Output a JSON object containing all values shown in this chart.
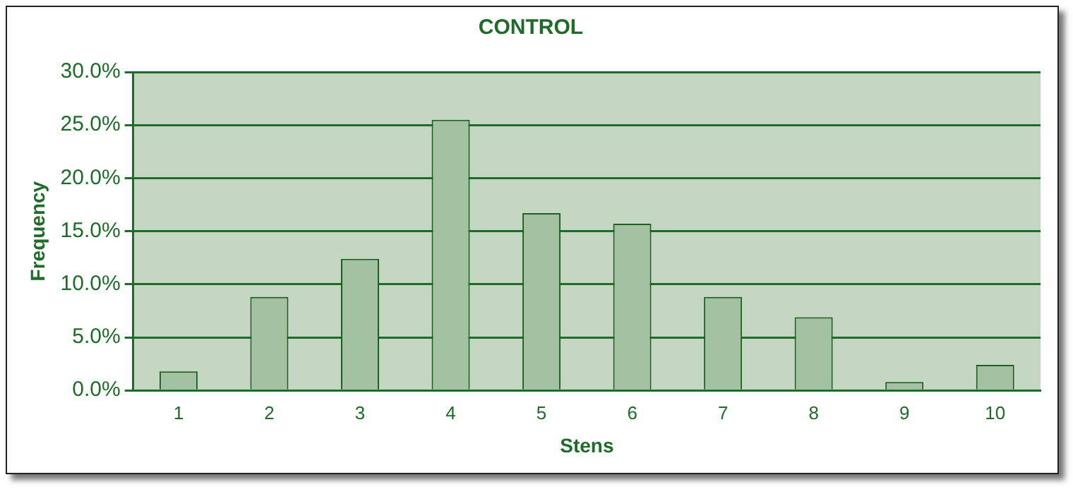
{
  "chart_data": {
    "type": "bar",
    "title": "CONTROL",
    "xlabel": "Stens",
    "ylabel": "Frequency",
    "categories": [
      "1",
      "2",
      "3",
      "4",
      "5",
      "6",
      "7",
      "8",
      "9",
      "10"
    ],
    "series": [
      {
        "color": "#a2c2a2",
        "values": [
          1.8,
          8.8,
          12.4,
          25.5,
          16.7,
          15.7,
          8.8,
          6.9,
          0.8,
          2.4
        ]
      }
    ],
    "ylim": [
      0,
      30
    ],
    "yticks": [
      {
        "value": 0,
        "label": "0.0%"
      },
      {
        "value": 5,
        "label": "5.0%"
      },
      {
        "value": 10,
        "label": "10.0%"
      },
      {
        "value": 15,
        "label": "15.0%"
      },
      {
        "value": 20,
        "label": "20.0%"
      },
      {
        "value": 25,
        "label": "25.0%"
      },
      {
        "value": 30,
        "label": "30.0%"
      }
    ],
    "grid": "y",
    "legend": false
  }
}
